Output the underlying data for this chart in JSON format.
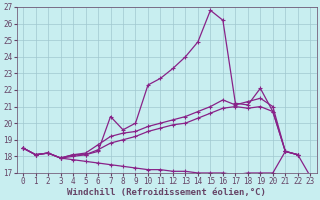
{
  "bg_color": "#c8eef0",
  "grid_color": "#a0c8d0",
  "line_color": "#882288",
  "spine_color": "#664466",
  "xlim": [
    -0.5,
    23.5
  ],
  "ylim": [
    17,
    27
  ],
  "xticks": [
    0,
    1,
    2,
    3,
    4,
    5,
    6,
    7,
    8,
    9,
    10,
    11,
    12,
    13,
    14,
    15,
    16,
    17,
    18,
    19,
    20,
    21,
    22,
    23
  ],
  "yticks": [
    17,
    18,
    19,
    20,
    21,
    22,
    23,
    24,
    25,
    26,
    27
  ],
  "xlabel": "Windchill (Refroidissement éolien,°C)",
  "lines": [
    {
      "x": [
        0,
        1,
        2,
        3,
        4,
        5,
        6,
        7,
        8,
        9,
        10,
        11,
        12,
        13,
        14,
        15,
        16,
        17,
        18,
        19,
        20,
        21,
        22
      ],
      "y": [
        18.5,
        18.1,
        18.2,
        17.9,
        18.1,
        18.1,
        18.3,
        20.4,
        19.6,
        20.0,
        22.3,
        22.7,
        23.3,
        24.0,
        24.9,
        26.8,
        26.2,
        21.2,
        21.1,
        22.1,
        20.7,
        18.3,
        18.1
      ]
    },
    {
      "x": [
        0,
        1,
        2,
        3,
        4,
        5,
        6,
        7,
        8,
        9,
        10,
        11,
        12,
        13,
        14,
        15,
        16,
        17,
        18,
        19,
        20,
        21,
        22
      ],
      "y": [
        18.5,
        18.1,
        18.2,
        17.9,
        18.1,
        18.2,
        18.7,
        19.2,
        19.4,
        19.5,
        19.8,
        20.0,
        20.2,
        20.4,
        20.7,
        21.0,
        21.4,
        21.1,
        21.3,
        21.5,
        21.0,
        18.3,
        18.1
      ]
    },
    {
      "x": [
        0,
        1,
        2,
        3,
        4,
        5,
        6,
        7,
        8,
        9,
        10,
        11,
        12,
        13,
        14,
        15,
        16,
        17,
        18,
        19,
        20,
        21,
        22
      ],
      "y": [
        18.5,
        18.1,
        18.2,
        17.9,
        18.0,
        18.1,
        18.4,
        18.8,
        19.0,
        19.2,
        19.5,
        19.7,
        19.9,
        20.0,
        20.3,
        20.6,
        20.9,
        21.0,
        20.9,
        21.0,
        20.7,
        18.3,
        18.1
      ]
    },
    {
      "x": [
        0,
        1,
        2,
        3,
        4,
        5,
        6,
        7,
        8,
        9,
        10,
        11,
        12,
        13,
        14,
        15,
        16,
        17,
        18,
        19,
        20,
        21,
        22,
        23
      ],
      "y": [
        18.5,
        18.1,
        18.2,
        17.9,
        17.8,
        17.7,
        17.6,
        17.5,
        17.4,
        17.3,
        17.2,
        17.2,
        17.1,
        17.1,
        17.0,
        17.0,
        17.0,
        16.9,
        17.0,
        17.0,
        17.0,
        18.3,
        18.1,
        16.8
      ]
    }
  ],
  "marker": "+",
  "markersize": 3.5,
  "linewidth": 0.9
}
